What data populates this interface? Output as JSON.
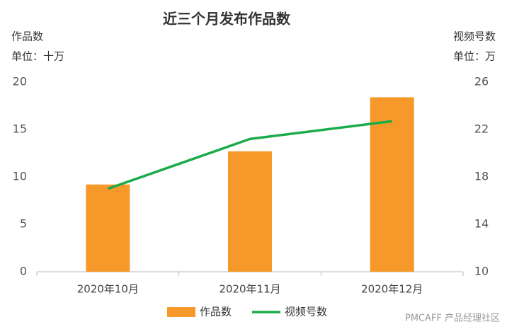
{
  "chart_data": {
    "type": "bar_line",
    "title": "近三个月发布作品数",
    "y_label": "作品数",
    "y_unit": "单位：十万",
    "y2_label": "视频号数",
    "y2_unit": "单位：万",
    "categories": [
      "2020年10月",
      "2020年11月",
      "2020年12月"
    ],
    "series": [
      {
        "name": "作品数",
        "type": "bar",
        "color": "#f7982b",
        "values": [
          9.2,
          12.7,
          18.4
        ]
      },
      {
        "name": "视频号数",
        "type": "line",
        "axis": "y2",
        "color": "#1aab4a",
        "values": [
          17.0,
          21.2,
          22.7
        ]
      }
    ],
    "ylim": [
      0,
      20
    ],
    "yticks": [
      0,
      5,
      10,
      15,
      20
    ],
    "y2lim": [
      10,
      26
    ],
    "y2ticks": [
      10,
      14,
      18,
      22,
      26
    ],
    "grid": false,
    "legend": "bottom",
    "source": "PMCAFF 产品经理社区"
  }
}
